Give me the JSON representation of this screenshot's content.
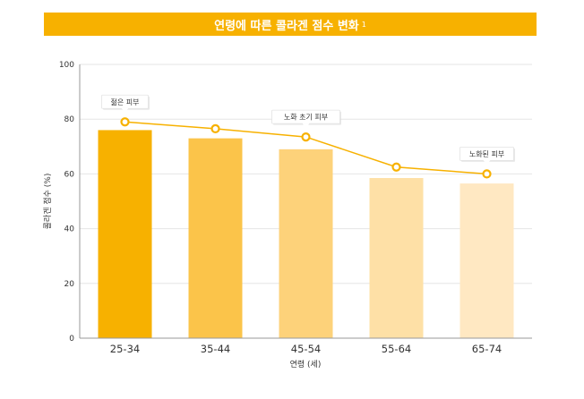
{
  "header": {
    "title": "연령에 따른 콜라겐 점수 변화",
    "footnote": "1"
  },
  "colors": {
    "title_bg": "#f7b100",
    "bars": [
      "#f7b100",
      "#fbc44a",
      "#fdd27a",
      "#fee0a6",
      "#ffe8c2"
    ],
    "line": "#f7b100",
    "grid": "#e6e6e6",
    "axis": "#999999"
  },
  "chart_data": {
    "type": "bar",
    "title": "연령에 따른 콜라겐 점수 변화",
    "xlabel": "연령 (세)",
    "ylabel": "콜라겐 점수 (%)",
    "categories": [
      "25-34",
      "35-44",
      "45-54",
      "55-64",
      "65-74"
    ],
    "ylim": [
      0,
      100
    ],
    "yticks": [
      0,
      20,
      40,
      60,
      80,
      100
    ],
    "grid": true,
    "bar_values": [
      76,
      73,
      69,
      58.5,
      56.5
    ],
    "line_values": [
      79,
      76.5,
      73.5,
      62.5,
      60
    ],
    "annotations": [
      {
        "index": 0,
        "text": "젊은 피부"
      },
      {
        "index": 2,
        "text": "노화 초기 피부"
      },
      {
        "index": 4,
        "text": "노화된 피부"
      }
    ]
  }
}
